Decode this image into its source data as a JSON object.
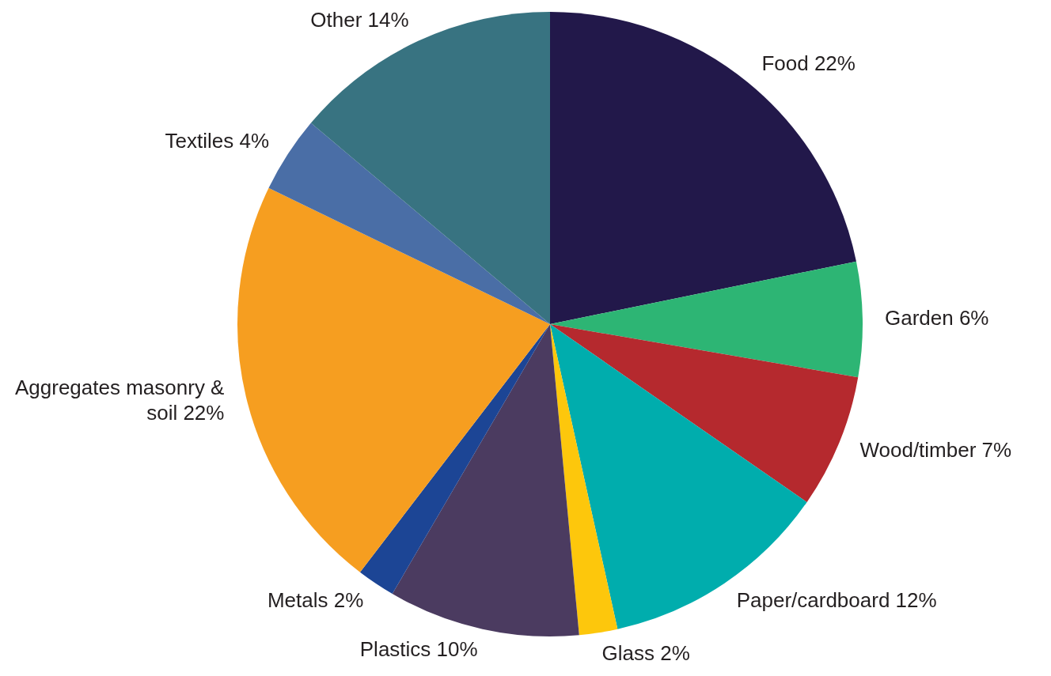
{
  "chart_data": {
    "type": "pie",
    "categories": [
      "Food",
      "Garden",
      "Wood/timber",
      "Paper/cardboard",
      "Glass",
      "Plastics",
      "Metals",
      "Aggregates masonry & soil",
      "Textiles",
      "Other"
    ],
    "values": [
      22,
      6,
      7,
      12,
      2,
      10,
      2,
      22,
      4,
      14
    ],
    "value_labels": [
      "22%",
      "6%",
      "7%",
      "12%",
      "2%",
      "10%",
      "2%",
      "22%",
      "4%",
      "14%"
    ],
    "colors": [
      "#22184a",
      "#2db574",
      "#b5292e",
      "#00adad",
      "#fdc70c",
      "#4b3b60",
      "#1c4595",
      "#f69e20",
      "#4a6ea6",
      "#387381"
    ],
    "legend": false
  }
}
